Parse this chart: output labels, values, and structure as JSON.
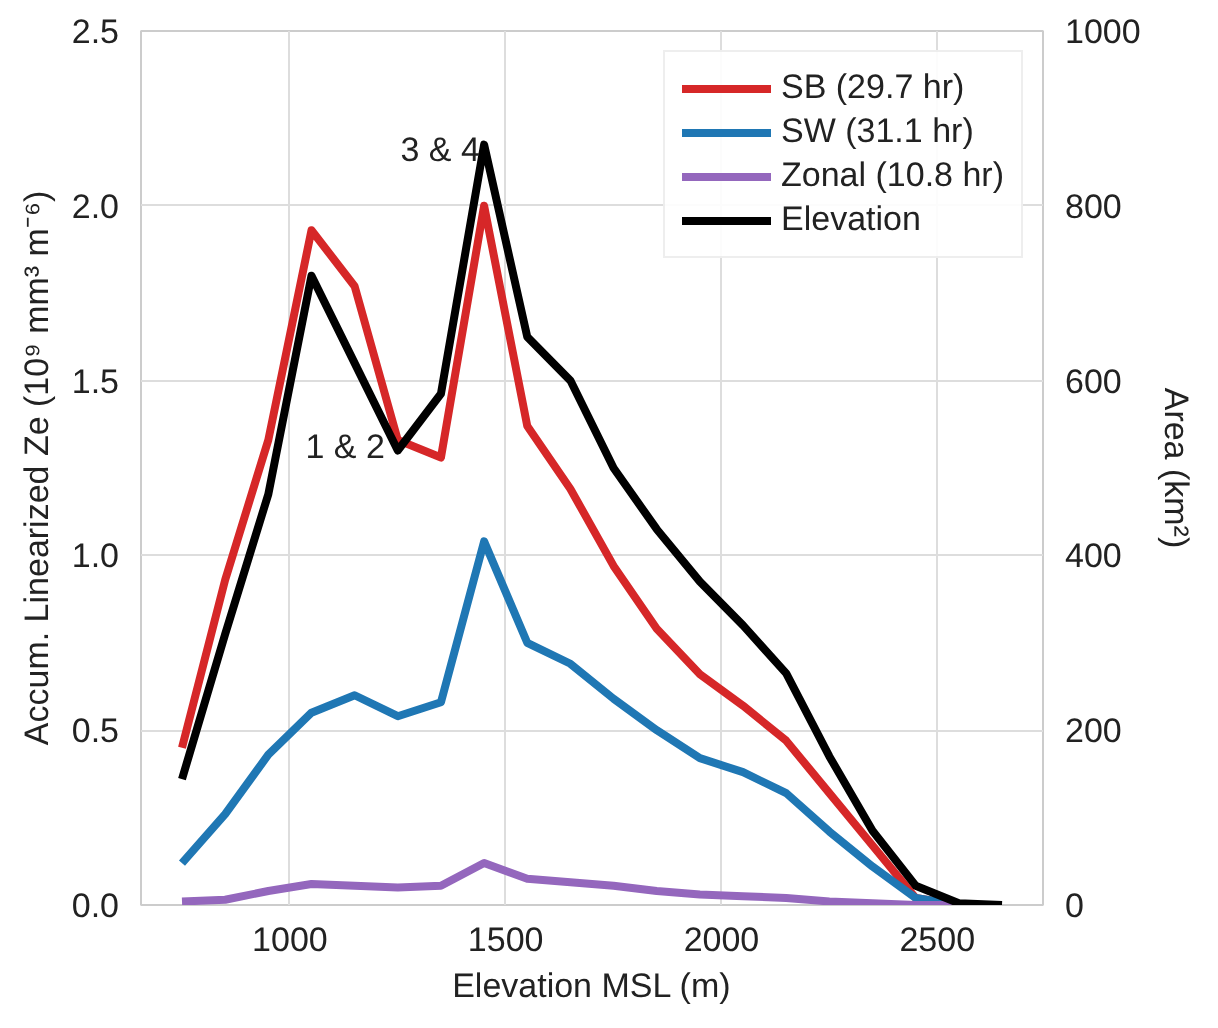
{
  "chart_data": {
    "type": "line",
    "xlabel": "Elevation MSL (m)",
    "ylabel": "Accum. Linearized Ze (10⁹ mm³ m⁻⁶)",
    "y2label": "Area (km²)",
    "x": [
      750,
      850,
      950,
      1050,
      1150,
      1250,
      1350,
      1450,
      1550,
      1650,
      1750,
      1850,
      1950,
      2050,
      2150,
      2250,
      2350,
      2450,
      2550
    ],
    "series": [
      {
        "name": "SB (29.7 hr)",
        "color": "#d62728",
        "values": [
          0.45,
          0.93,
          1.33,
          1.93,
          1.77,
          1.33,
          1.28,
          2.0,
          1.37,
          1.19,
          0.97,
          0.79,
          0.66,
          0.57,
          0.47,
          0.32,
          0.17,
          0.02,
          0.0
        ]
      },
      {
        "name": "SW (31.1 hr)",
        "color": "#1f77b4",
        "values": [
          0.12,
          0.26,
          0.43,
          0.55,
          0.6,
          0.54,
          0.58,
          1.04,
          0.75,
          0.69,
          0.59,
          0.5,
          0.42,
          0.38,
          0.32,
          0.21,
          0.11,
          0.02,
          0.0
        ]
      },
      {
        "name": "Zonal (10.8 hr)",
        "color": "#9467bd",
        "values": [
          0.01,
          0.015,
          0.04,
          0.06,
          0.055,
          0.05,
          0.055,
          0.12,
          0.075,
          0.065,
          0.055,
          0.04,
          0.03,
          0.025,
          0.02,
          0.01,
          0.005,
          0.0,
          0.0
        ]
      },
      {
        "name": "Elevation",
        "color": "#000000",
        "axis": "y2",
        "x": [
          750,
          850,
          950,
          1050,
          1150,
          1250,
          1350,
          1450,
          1550,
          1650,
          1750,
          1850,
          1950,
          2050,
          2150,
          2250,
          2350,
          2450,
          2550,
          2650
        ],
        "values": [
          144,
          310,
          470,
          720,
          620,
          520,
          585,
          870,
          650,
          600,
          500,
          430,
          370,
          320,
          265,
          170,
          85,
          22,
          2,
          0
        ]
      }
    ],
    "xlim": [
      655,
      2745
    ],
    "xticks": [
      1000,
      1500,
      2000,
      2500
    ],
    "ylim": [
      0,
      2.5
    ],
    "yticks": [
      {
        "value": 0,
        "label": "0.0"
      },
      {
        "value": 0.5,
        "label": "0.5"
      },
      {
        "value": 1,
        "label": "1.0"
      },
      {
        "value": 1.5,
        "label": "1.5"
      },
      {
        "value": 2,
        "label": "2.0"
      },
      {
        "value": 2.5,
        "label": "2.5"
      }
    ],
    "y2lim": [
      0,
      1000
    ],
    "y2ticks": [
      0,
      200,
      400,
      600,
      800,
      1000
    ],
    "annotations": [
      {
        "text": "1 & 2",
        "x": 1220,
        "y": 1.31
      },
      {
        "text": "3 & 4",
        "x": 1440,
        "y": 2.16
      }
    ],
    "grid": true,
    "legend": "top right",
    "marker": "none",
    "line_style": "solid"
  }
}
